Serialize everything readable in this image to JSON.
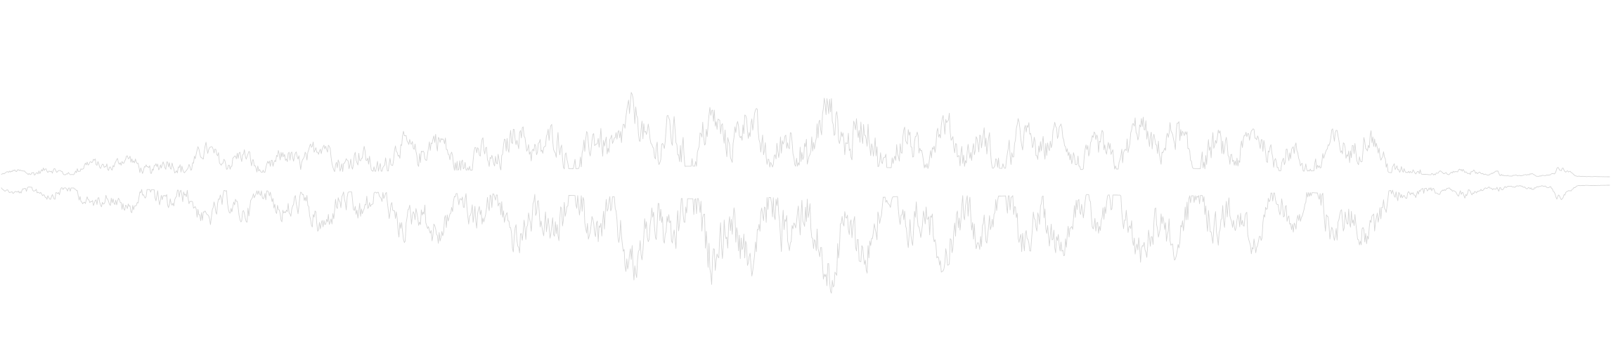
{
  "waveform": {
    "stroke_color": "#d6d6d6",
    "background_color": "#ffffff",
    "envelope": [
      {
        "t": 0.0,
        "a": 0.04
      },
      {
        "t": 0.02,
        "a": 0.14
      },
      {
        "t": 0.06,
        "a": 0.22
      },
      {
        "t": 0.11,
        "a": 0.34
      },
      {
        "t": 0.16,
        "a": 0.38
      },
      {
        "t": 0.22,
        "a": 0.46
      },
      {
        "t": 0.28,
        "a": 0.56
      },
      {
        "t": 0.33,
        "a": 0.62
      },
      {
        "t": 0.37,
        "a": 0.74
      },
      {
        "t": 0.4,
        "a": 0.86
      },
      {
        "t": 0.43,
        "a": 0.92
      },
      {
        "t": 0.47,
        "a": 0.8
      },
      {
        "t": 0.505,
        "a": 0.96
      },
      {
        "t": 0.54,
        "a": 0.84
      },
      {
        "t": 0.58,
        "a": 0.68
      },
      {
        "t": 0.62,
        "a": 0.74
      },
      {
        "t": 0.66,
        "a": 0.6
      },
      {
        "t": 0.7,
        "a": 0.68
      },
      {
        "t": 0.74,
        "a": 0.72
      },
      {
        "t": 0.78,
        "a": 0.56
      },
      {
        "t": 0.81,
        "a": 0.48
      },
      {
        "t": 0.84,
        "a": 0.64
      },
      {
        "t": 0.86,
        "a": 0.44
      },
      {
        "t": 0.875,
        "a": 0.12
      },
      {
        "t": 0.885,
        "a": 0.22
      },
      {
        "t": 0.9,
        "a": 0.03
      },
      {
        "t": 0.91,
        "a": 0.16
      },
      {
        "t": 0.925,
        "a": 0.02
      },
      {
        "t": 0.93,
        "a": 0.12
      },
      {
        "t": 0.945,
        "a": 0.02
      },
      {
        "t": 0.952,
        "a": 0.06
      },
      {
        "t": 0.96,
        "a": 0.02
      },
      {
        "t": 0.968,
        "a": 0.14
      },
      {
        "t": 0.98,
        "a": 0.01
      },
      {
        "t": 1.0,
        "a": 0.0
      }
    ]
  }
}
